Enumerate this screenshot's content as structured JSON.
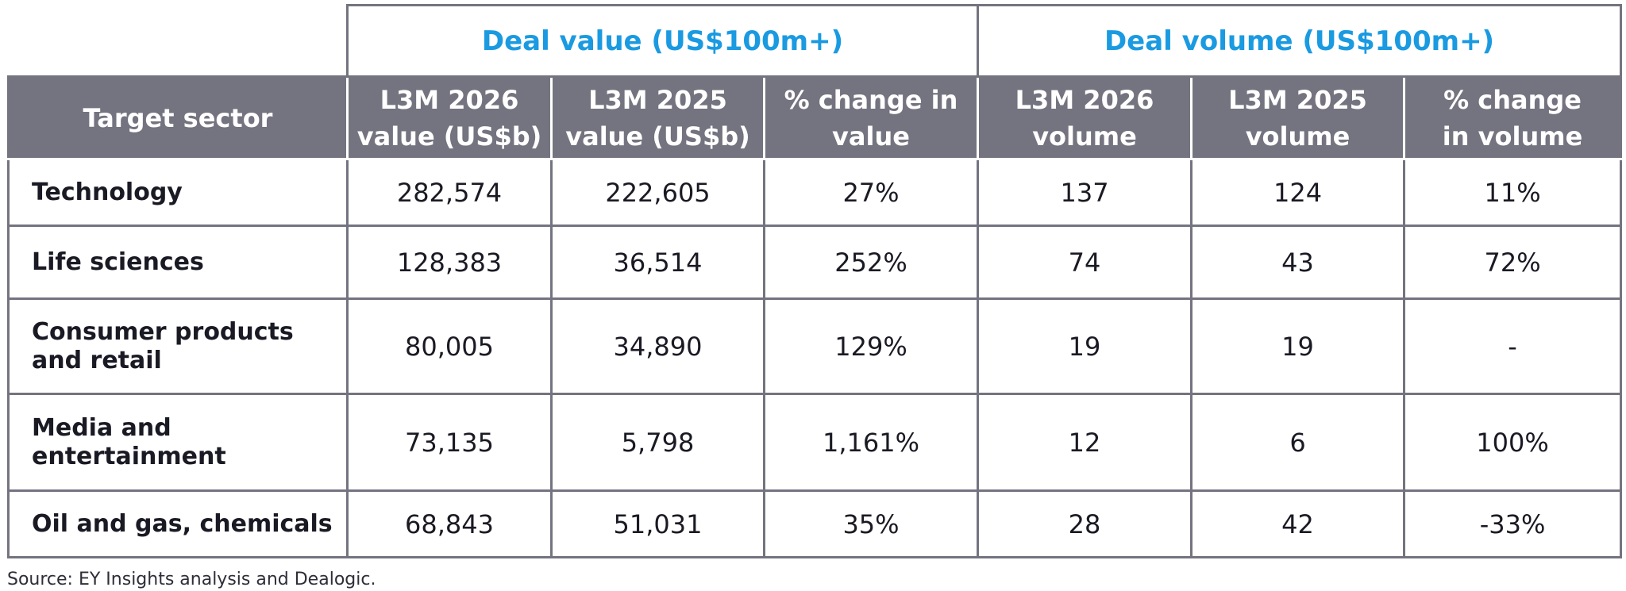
{
  "table": {
    "group_headers": {
      "deal_value": "Deal value (US$100m+)",
      "deal_volume": "Deal volume (US$100m+)"
    },
    "columns": [
      [
        "Target sector"
      ],
      [
        "L3M 2026",
        "value (US$b)"
      ],
      [
        "L3M 2025",
        "value (US$b)"
      ],
      [
        "% change in",
        "value"
      ],
      [
        "L3M 2026",
        "volume"
      ],
      [
        "L3M 2025",
        "volume"
      ],
      [
        "% change",
        "in volume"
      ]
    ],
    "rows": [
      {
        "sector": [
          "Technology"
        ],
        "value_2026": "282,574",
        "value_2025": "222,605",
        "value_change": "27%",
        "volume_2026": "137",
        "volume_2025": "124",
        "volume_change": "11%"
      },
      {
        "sector": [
          "Life sciences"
        ],
        "value_2026": "128,383",
        "value_2025": "36,514",
        "value_change": "252%",
        "volume_2026": "74",
        "volume_2025": "43",
        "volume_change": "72%"
      },
      {
        "sector": [
          "Consumer products",
          "and retail"
        ],
        "value_2026": "80,005",
        "value_2025": "34,890",
        "value_change": "129%",
        "volume_2026": "19",
        "volume_2025": "19",
        "volume_change": "-"
      },
      {
        "sector": [
          "Media and",
          "entertainment"
        ],
        "value_2026": "73,135",
        "value_2025": "5,798",
        "value_change": "1,161%",
        "volume_2026": "12",
        "volume_2025": "6",
        "volume_change": "100%"
      },
      {
        "sector": [
          "Oil and gas, chemicals"
        ],
        "value_2026": "68,843",
        "value_2025": "51,031",
        "value_change": "35%",
        "volume_2026": "28",
        "volume_2025": "42",
        "volume_change": "-33%"
      }
    ]
  },
  "source": "Source: EY Insights analysis and Dealogic.",
  "colors": {
    "accent_blue": "#1a9ae1",
    "header_gray": "#747480",
    "text_dark": "#1a1a24"
  }
}
